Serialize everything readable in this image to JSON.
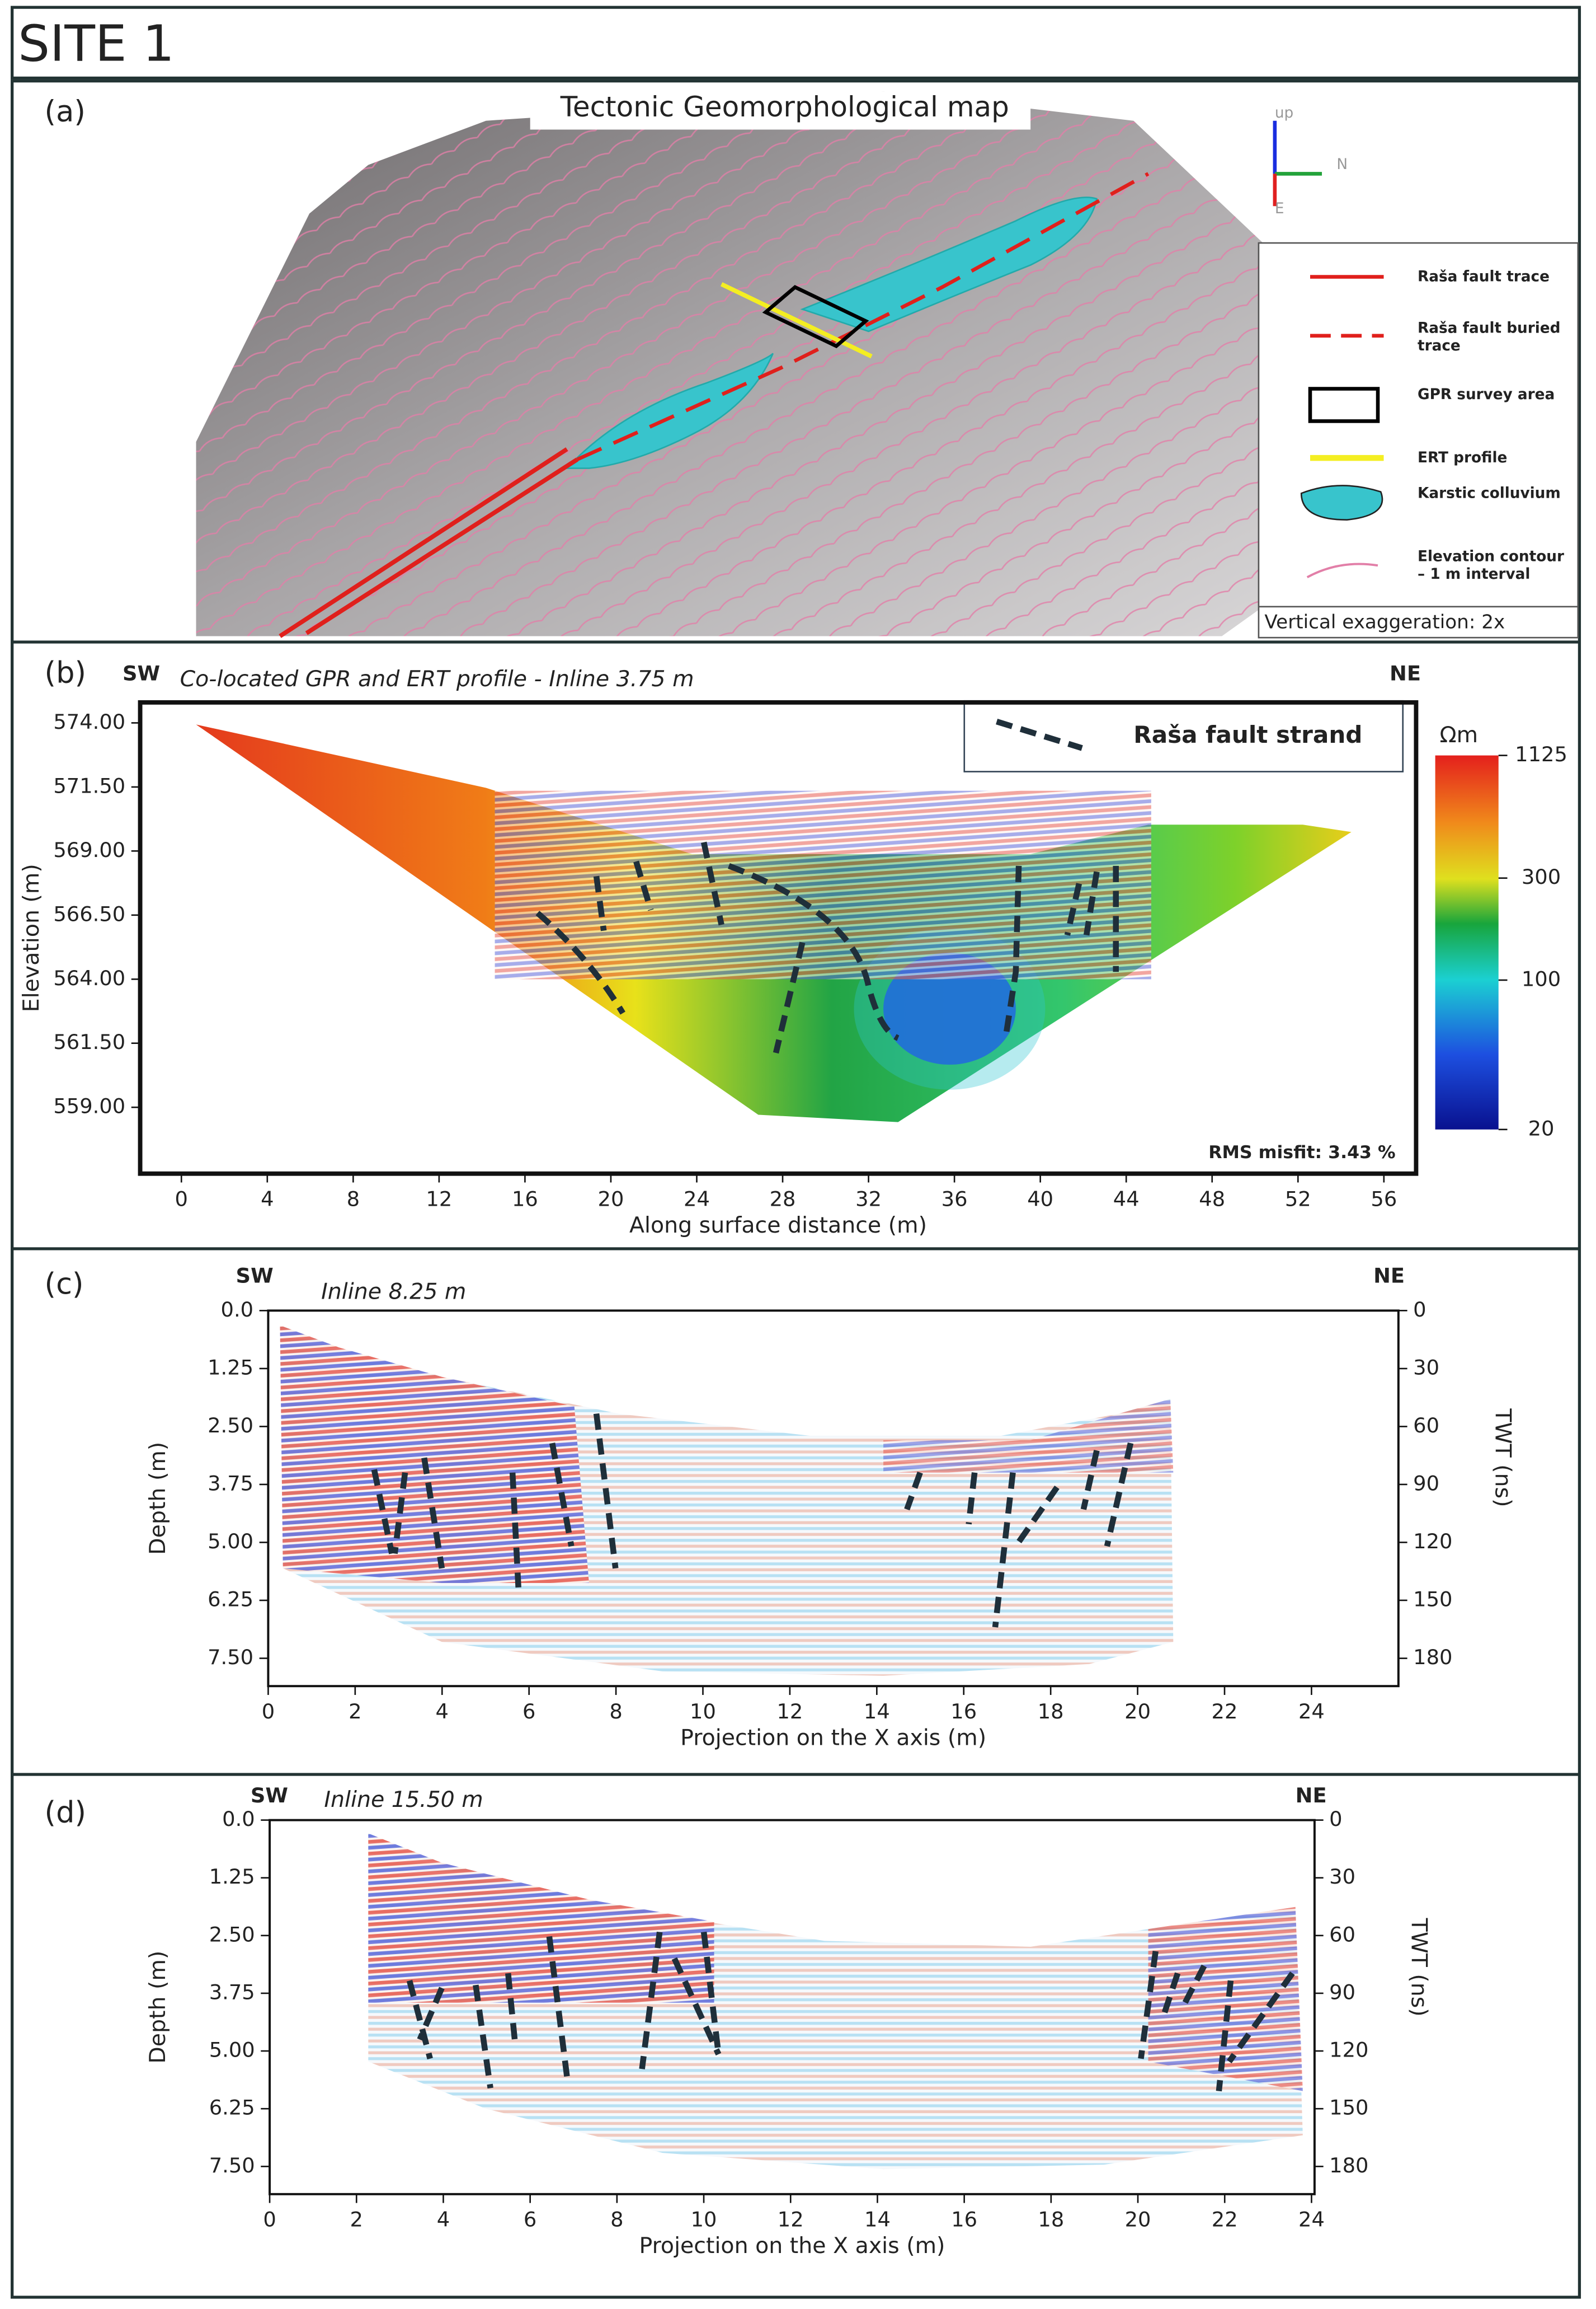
{
  "header": {
    "title": "SITE 1"
  },
  "panel_a": {
    "label": "(a)",
    "title": "Tectonic Geomorphological map",
    "compass": {
      "up": "up",
      "north": "N",
      "east": "E"
    },
    "legend": [
      "Raša fault trace",
      "Raša fault buried trace",
      "GPR survey area",
      "ERT profile",
      "Karstic colluvium",
      "Elevation contour – 1 m interval"
    ],
    "note": "Vertical exaggeration: 2x"
  },
  "panel_b": {
    "label": "(b)",
    "left": "SW",
    "right": "NE",
    "title": "Co-located GPR and ERT profile - Inline 3.75 m",
    "legend": "Raša fault strand",
    "ylabel": "Elevation (m)",
    "xlabel": "Along surface distance (m)",
    "xlim": [
      -1.92,
      57.5
    ],
    "ylim": [
      556.41,
      574.8
    ],
    "xticks": [
      0,
      4,
      8,
      12,
      16,
      20,
      24,
      28,
      32,
      36,
      40,
      44,
      48,
      52,
      56
    ],
    "yticks": [
      {
        "value": 574,
        "label": "574.00"
      },
      {
        "value": 571.5,
        "label": "571.50"
      },
      {
        "value": 569,
        "label": "569.00"
      },
      {
        "value": 566.5,
        "label": "566.50"
      },
      {
        "value": 564,
        "label": "564.00"
      },
      {
        "value": 561.5,
        "label": "561.50"
      },
      {
        "value": 559,
        "label": "559.00"
      }
    ],
    "colorbar": {
      "unit": "Ωm",
      "scale": "log",
      "lim": [
        20,
        1125
      ],
      "ticks": [
        20,
        100,
        300,
        1125
      ]
    },
    "misfit": "RMS misfit: 3.43 %"
  },
  "panel_c": {
    "label": "(c)",
    "left": "SW",
    "right": "NE",
    "title": "Inline 8.25 m",
    "ylabel": "Depth (m)",
    "y2label": "TWT (ns)",
    "xlabel": "Projection on the X axis (m)",
    "xlim": [
      0,
      26
    ],
    "ylim": [
      8.1,
      0
    ],
    "y2lim": [
      194.4,
      0
    ],
    "xticks": [
      0,
      2,
      4,
      6,
      8,
      10,
      12,
      14,
      16,
      18,
      20,
      22,
      24
    ],
    "yticks": [
      {
        "value": 0,
        "label": "0.0"
      },
      1.25,
      {
        "value": 2.5,
        "label": "2.50"
      },
      3.75,
      {
        "value": 5,
        "label": "5.00"
      },
      6.25,
      {
        "value": 7.5,
        "label": "7.50"
      }
    ],
    "y2ticks": [
      0,
      30,
      60,
      90,
      120,
      150,
      180
    ]
  },
  "panel_d": {
    "label": "(d)",
    "left": "SW",
    "right": "NE",
    "title": "Inline 15.50 m",
    "ylabel": "Depth (m)",
    "y2label": "TWT (ns)",
    "xlabel": "Projection on the X axis (m)",
    "xlim": [
      0,
      24.07
    ],
    "ylim": [
      8.1,
      0
    ],
    "y2lim": [
      194.4,
      0
    ],
    "xticks": [
      0,
      2,
      4,
      6,
      8,
      10,
      12,
      14,
      16,
      18,
      20,
      22,
      24
    ],
    "yticks": [
      {
        "value": 0,
        "label": "0.0"
      },
      1.25,
      {
        "value": 2.5,
        "label": "2.50"
      },
      3.75,
      {
        "value": 5,
        "label": "5.00"
      },
      6.25,
      {
        "value": 7.5,
        "label": "7.50"
      }
    ],
    "y2ticks": [
      0,
      30,
      60,
      90,
      120,
      150,
      180
    ]
  }
}
